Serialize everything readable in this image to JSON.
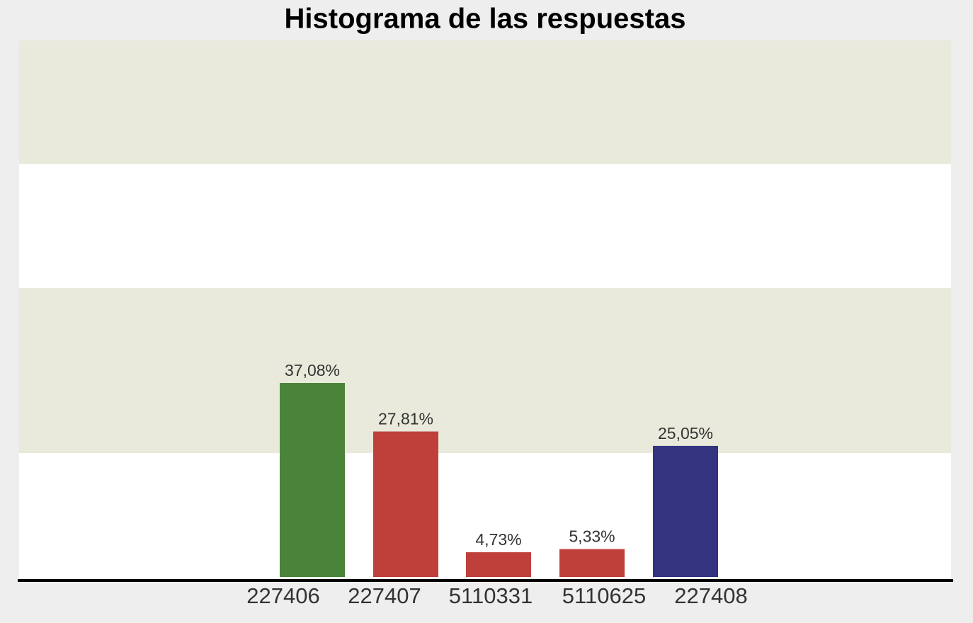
{
  "chart_data": {
    "type": "bar",
    "title": "Histograma de las respuestas",
    "categories": [
      "227406",
      "227407",
      "5110331",
      "5110625",
      "227408"
    ],
    "values": [
      37.08,
      27.81,
      4.73,
      5.33,
      25.05
    ],
    "value_labels": [
      "37,08%",
      "27,81%",
      "4,73%",
      "5,33%",
      "25,05%"
    ],
    "colors": [
      "#4a843b",
      "#bf403b",
      "#bf403b",
      "#bf403b",
      "#33337f"
    ]
  }
}
